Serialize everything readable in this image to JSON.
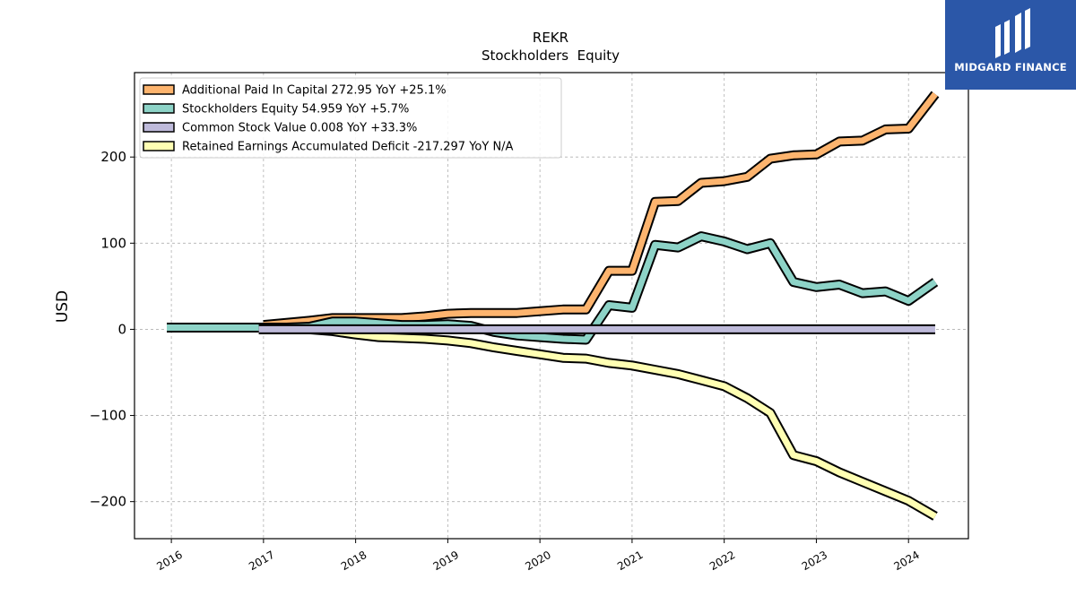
{
  "brand": {
    "name": "MIDGARD FINANCE",
    "bg": "#2b57a8"
  },
  "chart_data": {
    "type": "line",
    "title": "REKR",
    "subtitle": "Stockholders  Equity",
    "ylabel": "USD",
    "xlim": [
      2015.6,
      2024.65
    ],
    "ylim": [
      -243,
      298
    ],
    "yticks": [
      -200,
      -100,
      0,
      100,
      200
    ],
    "ytick_labels": [
      "−200",
      "−100",
      "0",
      "100",
      "200"
    ],
    "xticks": [
      2016,
      2017,
      2018,
      2019,
      2020,
      2021,
      2022,
      2023,
      2024
    ],
    "xtick_labels": [
      "2016",
      "2017",
      "2018",
      "2019",
      "2020",
      "2021",
      "2022",
      "2023",
      "2024"
    ],
    "grid": true,
    "legend_position": "top-left",
    "series": [
      {
        "name": "Additional Paid In Capital  272.95 YoY +25.1%",
        "color": "#fdb46e",
        "points": [
          [
            2017.0,
            5
          ],
          [
            2017.5,
            10
          ],
          [
            2017.75,
            13
          ],
          [
            2018.0,
            13
          ],
          [
            2018.25,
            13
          ],
          [
            2018.5,
            13
          ],
          [
            2018.75,
            15
          ],
          [
            2019.0,
            18
          ],
          [
            2019.25,
            19
          ],
          [
            2019.5,
            19
          ],
          [
            2019.75,
            19
          ],
          [
            2020.0,
            21
          ],
          [
            2020.25,
            23
          ],
          [
            2020.5,
            23
          ],
          [
            2020.75,
            68
          ],
          [
            2021.0,
            68
          ],
          [
            2021.25,
            148
          ],
          [
            2021.5,
            149
          ],
          [
            2021.75,
            170
          ],
          [
            2022.0,
            172
          ],
          [
            2022.25,
            177
          ],
          [
            2022.5,
            198
          ],
          [
            2022.75,
            202
          ],
          [
            2023.0,
            203
          ],
          [
            2023.25,
            218
          ],
          [
            2023.5,
            219
          ],
          [
            2023.75,
            232
          ],
          [
            2024.0,
            233
          ],
          [
            2024.29,
            273
          ]
        ]
      },
      {
        "name": "Stockholders Equity  54.959 YoY +5.7%",
        "color": "#8dd3c7",
        "points": [
          [
            2015.95,
            2
          ],
          [
            2016.25,
            2
          ],
          [
            2016.5,
            2
          ],
          [
            2016.75,
            2
          ],
          [
            2017.0,
            2
          ],
          [
            2017.25,
            2
          ],
          [
            2017.5,
            3
          ],
          [
            2017.75,
            9
          ],
          [
            2018.0,
            9
          ],
          [
            2018.25,
            7
          ],
          [
            2018.5,
            5
          ],
          [
            2018.75,
            5
          ],
          [
            2019.0,
            6
          ],
          [
            2019.25,
            4
          ],
          [
            2019.5,
            -3
          ],
          [
            2019.75,
            -7
          ],
          [
            2020.0,
            -9
          ],
          [
            2020.25,
            -11
          ],
          [
            2020.5,
            -12
          ],
          [
            2020.75,
            28
          ],
          [
            2021.0,
            25
          ],
          [
            2021.25,
            98
          ],
          [
            2021.5,
            95
          ],
          [
            2021.75,
            108
          ],
          [
            2022.0,
            102
          ],
          [
            2022.25,
            93
          ],
          [
            2022.5,
            100
          ],
          [
            2022.75,
            55
          ],
          [
            2023.0,
            49
          ],
          [
            2023.25,
            52
          ],
          [
            2023.5,
            42
          ],
          [
            2023.75,
            44
          ],
          [
            2024.0,
            33
          ],
          [
            2024.29,
            55
          ]
        ]
      },
      {
        "name": "Common Stock Value  0.008 YoY +33.3%",
        "color": "#bebada",
        "points": [
          [
            2016.95,
            0
          ],
          [
            2024.29,
            0
          ]
        ]
      },
      {
        "name": "Retained Earnings Accumulated Deficit  -217.297 YoY N/A",
        "color": "#ffffb3",
        "points": [
          [
            2016.95,
            0
          ],
          [
            2017.25,
            0
          ],
          [
            2017.5,
            0
          ],
          [
            2017.75,
            -2
          ],
          [
            2018.0,
            -6
          ],
          [
            2018.25,
            -9
          ],
          [
            2018.5,
            -10
          ],
          [
            2018.75,
            -11
          ],
          [
            2019.0,
            -13
          ],
          [
            2019.25,
            -16
          ],
          [
            2019.5,
            -21
          ],
          [
            2019.75,
            -25
          ],
          [
            2020.0,
            -29
          ],
          [
            2020.25,
            -33
          ],
          [
            2020.5,
            -34
          ],
          [
            2020.75,
            -39
          ],
          [
            2021.0,
            -42
          ],
          [
            2021.25,
            -47
          ],
          [
            2021.5,
            -52
          ],
          [
            2021.75,
            -59
          ],
          [
            2022.0,
            -66
          ],
          [
            2022.25,
            -80
          ],
          [
            2022.5,
            -97
          ],
          [
            2022.75,
            -146
          ],
          [
            2023.0,
            -153
          ],
          [
            2023.25,
            -166
          ],
          [
            2023.5,
            -177
          ],
          [
            2023.75,
            -188
          ],
          [
            2024.0,
            -199
          ],
          [
            2024.29,
            -217
          ]
        ]
      }
    ]
  }
}
